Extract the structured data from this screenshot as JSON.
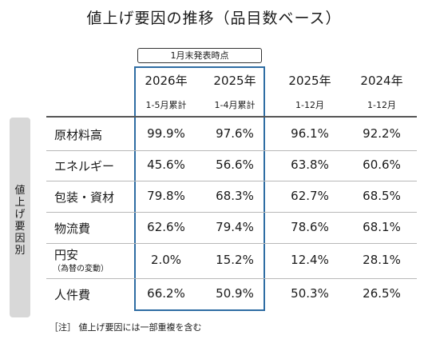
{
  "title": "値上げ要因の推移（品目数ベース）",
  "note_label": "1月末発表時点",
  "side_label": "値上げ要因別",
  "footnote": "［注］ 値上げ要因には一部重複を含む",
  "chart_data": {
    "type": "table",
    "columns": [
      {
        "year": "2026年",
        "period": "1-5月累計"
      },
      {
        "year": "2025年",
        "period": "1-4月累計"
      },
      {
        "year": "2025年",
        "period": "1-12月"
      },
      {
        "year": "2024年",
        "period": "1-12月"
      }
    ],
    "rows": [
      {
        "label": "原材料高",
        "sub": "",
        "values": [
          "99.9%",
          "97.6%",
          "96.1%",
          "92.2%"
        ]
      },
      {
        "label": "エネルギー",
        "sub": "",
        "values": [
          "45.6%",
          "56.6%",
          "63.8%",
          "60.6%"
        ]
      },
      {
        "label": "包装・資材",
        "sub": "",
        "values": [
          "79.8%",
          "68.3%",
          "62.7%",
          "68.5%"
        ]
      },
      {
        "label": "物流費",
        "sub": "",
        "values": [
          "62.6%",
          "79.4%",
          "78.6%",
          "68.1%"
        ]
      },
      {
        "label": "円安",
        "sub": "（為替の変動）",
        "values": [
          "2.0%",
          "15.2%",
          "12.4%",
          "28.1%"
        ]
      },
      {
        "label": "人件費",
        "sub": "",
        "values": [
          "66.2%",
          "50.9%",
          "50.3%",
          "26.5%"
        ]
      }
    ]
  }
}
